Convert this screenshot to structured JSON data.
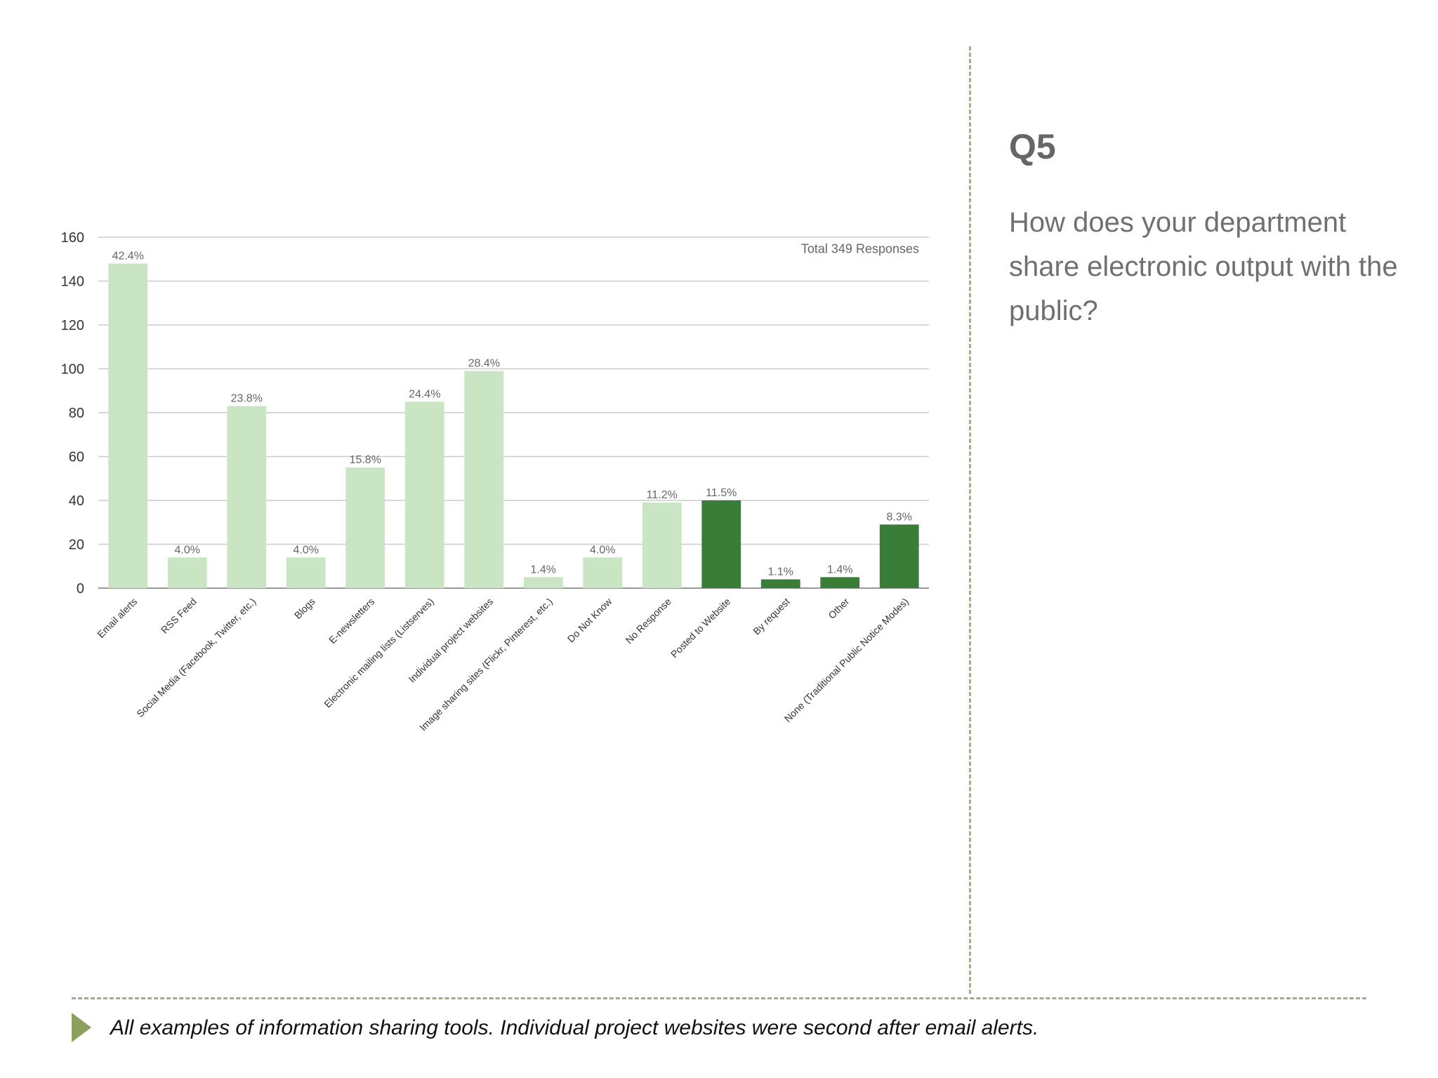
{
  "question": {
    "number": "Q5",
    "text": "How does your department share electronic output with the public?"
  },
  "footer": {
    "text": "All examples of information sharing tools.  Individual project websites were second after email alerts."
  },
  "colors": {
    "light_bar": "#c9e5c4",
    "dark_bar": "#3a7d38",
    "grid": "#cccccc",
    "axis_text": "#333333",
    "label_text": "#666666"
  },
  "chart_data": {
    "type": "bar",
    "annotation": "Total 349 Responses",
    "ylim": [
      0,
      160
    ],
    "yticks": [
      0,
      20,
      40,
      60,
      80,
      100,
      120,
      140,
      160
    ],
    "grid": true,
    "categories": [
      "Email alerts",
      "RSS Feed",
      "Social Media (Facebook, Twitter, etc.)",
      "Blogs",
      "E-newsletters",
      "Electronic mailing lists (Listserves)",
      "Individual project websites",
      "Image sharing sites (Flickr, Pinterest, etc.)",
      "Do Not Know",
      "No Response",
      "Posted to Website",
      "By request",
      "Other",
      "None (Traditional Public Notice Modes)"
    ],
    "values": [
      148,
      14,
      83,
      14,
      55,
      85,
      99,
      5,
      14,
      39,
      40,
      4,
      5,
      29
    ],
    "data_labels": [
      "42.4%",
      "4.0%",
      "23.8%",
      "4.0%",
      "15.8%",
      "24.4%",
      "28.4%",
      "1.4%",
      "4.0%",
      "11.2%",
      "11.5%",
      "1.1%",
      "1.4%",
      "8.3%"
    ],
    "bar_tone": [
      "light",
      "light",
      "light",
      "light",
      "light",
      "light",
      "light",
      "light",
      "light",
      "light",
      "dark",
      "dark",
      "dark",
      "dark"
    ]
  }
}
